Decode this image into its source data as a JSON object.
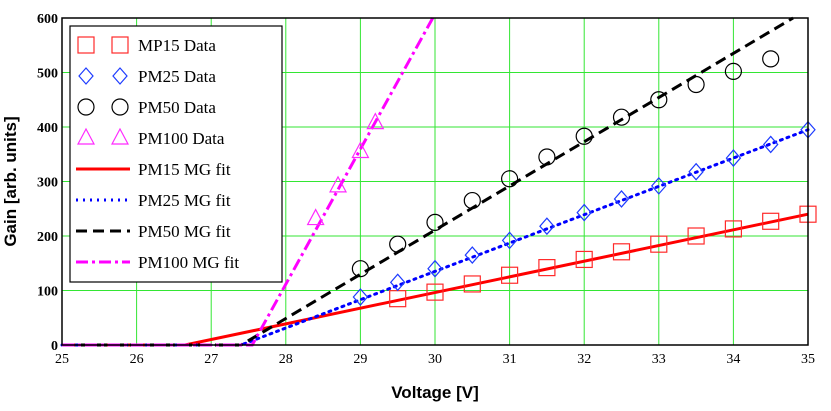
{
  "chart_data": {
    "type": "scatter",
    "title": "",
    "xlabel": "Voltage [V]",
    "ylabel": "Gain [arb. units]",
    "xlim": [
      25,
      35
    ],
    "ylim": [
      0,
      600
    ],
    "x_ticks": [
      "25",
      "26",
      "27",
      "28",
      "29",
      "30",
      "31",
      "32",
      "33",
      "34",
      "35"
    ],
    "y_ticks": [
      "0",
      "100",
      "200",
      "300",
      "400",
      "500",
      "600"
    ],
    "y_tick_labels": [
      "0",
      "100",
      "200",
      "300",
      "400",
      "500",
      "600"
    ],
    "grid": true,
    "legend_position": "top-left",
    "series": [
      {
        "name": "MP15 Data",
        "kind": "markers",
        "marker": "square",
        "color": "#ff2a2a",
        "x": [
          29.5,
          30.0,
          30.5,
          31.0,
          31.5,
          32.0,
          32.5,
          33.0,
          33.5,
          34.0,
          34.5,
          35.0
        ],
        "y": [
          85,
          97,
          112,
          128,
          142,
          157,
          171,
          185,
          200,
          213,
          227,
          240
        ]
      },
      {
        "name": "PM25 Data",
        "kind": "markers",
        "marker": "diamond",
        "color": "#1e3cff",
        "x": [
          29.0,
          29.5,
          30.0,
          30.5,
          31.0,
          31.5,
          32.0,
          32.5,
          33.0,
          33.5,
          34.0,
          34.5,
          35.0
        ],
        "y": [
          88,
          115,
          140,
          165,
          192,
          218,
          243,
          268,
          292,
          318,
          343,
          368,
          395
        ]
      },
      {
        "name": "PM50 Data",
        "kind": "markers",
        "marker": "circle",
        "color": "#000000",
        "x": [
          29.0,
          29.5,
          30.0,
          30.5,
          31.0,
          31.5,
          32.0,
          32.5,
          33.0,
          33.5,
          34.0,
          34.5
        ],
        "y": [
          140,
          185,
          225,
          265,
          305,
          345,
          383,
          418,
          450,
          478,
          502,
          525
        ]
      },
      {
        "name": "PM100 Data",
        "kind": "markers",
        "marker": "triangle",
        "color": "#ff2aff",
        "x": [
          28.4,
          28.7,
          29.0,
          29.2
        ],
        "y": [
          232,
          292,
          355,
          408
        ]
      },
      {
        "name": "PM15 MG fit",
        "kind": "line",
        "dash": "solid",
        "color": "#ff0000",
        "x": [
          25,
          26.65,
          35
        ],
        "y": [
          0,
          0,
          240
        ]
      },
      {
        "name": "PM25 MG fit",
        "kind": "line",
        "dash": "dot",
        "color": "#0000ff",
        "x": [
          25,
          27.4,
          35
        ],
        "y": [
          0,
          0,
          395
        ]
      },
      {
        "name": "PM50 MG fit",
        "kind": "line",
        "dash": "dash",
        "color": "#000000",
        "x": [
          25,
          27.4,
          34.8
        ],
        "y": [
          0,
          0,
          600
        ]
      },
      {
        "name": "PM100 MG fit",
        "kind": "line",
        "dash": "dashdot",
        "color": "#ff00ff",
        "x": [
          25,
          27.55,
          29.97
        ],
        "y": [
          0,
          0,
          600
        ]
      }
    ]
  }
}
